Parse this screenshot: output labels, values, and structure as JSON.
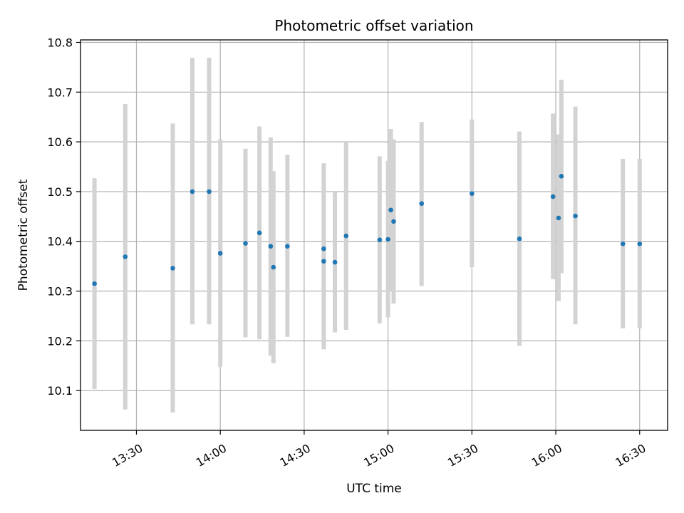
{
  "chart_data": {
    "type": "scatter",
    "title": "Photometric offset variation",
    "xlabel": "UTC time",
    "ylabel": "Photometric offset",
    "grid": true,
    "x_axis": {
      "kind": "time",
      "range": [
        "13:10",
        "16:40"
      ],
      "tick_values": [
        "13:30",
        "14:00",
        "14:30",
        "15:00",
        "15:30",
        "16:00",
        "16:30"
      ],
      "tick_labels": [
        "13:30",
        "14:00",
        "14:30",
        "15:00",
        "15:30",
        "16:00",
        "16:30"
      ]
    },
    "y_axis": {
      "range": [
        10.02,
        10.805
      ],
      "ticks": [
        10.1,
        10.2,
        10.3,
        10.4,
        10.5,
        10.6,
        10.7,
        10.8
      ],
      "tick_labels": [
        "10.1",
        "10.2",
        "10.3",
        "10.4",
        "10.5",
        "10.6",
        "10.7",
        "10.8"
      ]
    },
    "colors": {
      "points": "#1f77b4",
      "errorbars": "#d3d3d3",
      "grid": "#b0b0b0"
    },
    "series": [
      {
        "points": [
          {
            "x": "13:15",
            "y": 10.315,
            "ylow": 10.103,
            "yhigh": 10.527
          },
          {
            "x": "13:26",
            "y": 10.369,
            "ylow": 10.062,
            "yhigh": 10.676
          },
          {
            "x": "13:43",
            "y": 10.346,
            "ylow": 10.056,
            "yhigh": 10.637
          },
          {
            "x": "13:50",
            "y": 10.5,
            "ylow": 10.233,
            "yhigh": 10.769
          },
          {
            "x": "13:56",
            "y": 10.5,
            "ylow": 10.233,
            "yhigh": 10.769
          },
          {
            "x": "14:00",
            "y": 10.376,
            "ylow": 10.148,
            "yhigh": 10.605
          },
          {
            "x": "14:09",
            "y": 10.396,
            "ylow": 10.207,
            "yhigh": 10.586
          },
          {
            "x": "14:14",
            "y": 10.417,
            "ylow": 10.203,
            "yhigh": 10.631
          },
          {
            "x": "14:18",
            "y": 10.39,
            "ylow": 10.17,
            "yhigh": 10.609
          },
          {
            "x": "14:19",
            "y": 10.348,
            "ylow": 10.155,
            "yhigh": 10.541
          },
          {
            "x": "14:24",
            "y": 10.39,
            "ylow": 10.208,
            "yhigh": 10.574
          },
          {
            "x": "14:37",
            "y": 10.36,
            "ylow": 10.183,
            "yhigh": 10.537
          },
          {
            "x": "14:37",
            "y": 10.385,
            "ylow": 10.212,
            "yhigh": 10.557
          },
          {
            "x": "14:41",
            "y": 10.358,
            "ylow": 10.217,
            "yhigh": 10.5
          },
          {
            "x": "14:45",
            "y": 10.411,
            "ylow": 10.222,
            "yhigh": 10.6
          },
          {
            "x": "14:57",
            "y": 10.403,
            "ylow": 10.235,
            "yhigh": 10.571
          },
          {
            "x": "15:00",
            "y": 10.404,
            "ylow": 10.247,
            "yhigh": 10.562
          },
          {
            "x": "15:01",
            "y": 10.463,
            "ylow": 10.3,
            "yhigh": 10.626
          },
          {
            "x": "15:02",
            "y": 10.44,
            "ylow": 10.275,
            "yhigh": 10.605
          },
          {
            "x": "15:12",
            "y": 10.476,
            "ylow": 10.31,
            "yhigh": 10.64
          },
          {
            "x": "15:30",
            "y": 10.496,
            "ylow": 10.348,
            "yhigh": 10.645
          },
          {
            "x": "15:47",
            "y": 10.405,
            "ylow": 10.19,
            "yhigh": 10.621
          },
          {
            "x": "15:59",
            "y": 10.49,
            "ylow": 10.324,
            "yhigh": 10.657
          },
          {
            "x": "16:01",
            "y": 10.447,
            "ylow": 10.28,
            "yhigh": 10.615
          },
          {
            "x": "16:02",
            "y": 10.531,
            "ylow": 10.336,
            "yhigh": 10.725
          },
          {
            "x": "16:07",
            "y": 10.451,
            "ylow": 10.233,
            "yhigh": 10.671
          },
          {
            "x": "16:24",
            "y": 10.395,
            "ylow": 10.225,
            "yhigh": 10.566
          },
          {
            "x": "16:30",
            "y": 10.395,
            "ylow": 10.225,
            "yhigh": 10.566
          }
        ]
      }
    ]
  }
}
